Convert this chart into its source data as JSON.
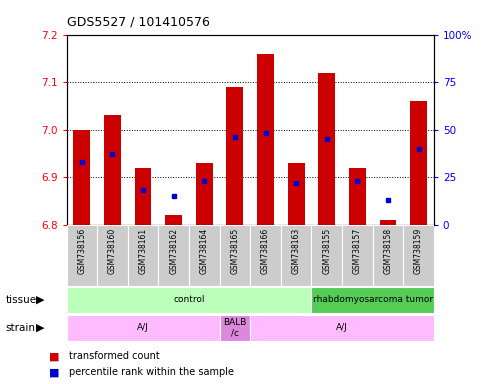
{
  "title": "GDS5527 / 101410576",
  "samples": [
    "GSM738156",
    "GSM738160",
    "GSM738161",
    "GSM738162",
    "GSM738164",
    "GSM738165",
    "GSM738166",
    "GSM738163",
    "GSM738155",
    "GSM738157",
    "GSM738158",
    "GSM738159"
  ],
  "red_values": [
    7.0,
    7.03,
    6.92,
    6.82,
    6.93,
    7.09,
    7.16,
    6.93,
    7.12,
    6.92,
    6.81,
    7.06
  ],
  "blue_values_pct": [
    33,
    37,
    18,
    15,
    23,
    46,
    48,
    22,
    45,
    23,
    13,
    40
  ],
  "ylim_left": [
    6.8,
    7.2
  ],
  "ylim_right": [
    0,
    100
  ],
  "yticks_left": [
    6.8,
    6.9,
    7.0,
    7.1,
    7.2
  ],
  "yticks_right": [
    0,
    25,
    50,
    75,
    100
  ],
  "ytick_labels_right": [
    "0",
    "25",
    "50",
    "75",
    "100%"
  ],
  "bar_bottom": 6.8,
  "bar_color": "#cc0000",
  "blue_color": "#0000cc",
  "tissue_groups": [
    {
      "label": "control",
      "start": 0,
      "end": 8,
      "color": "#bbffbb"
    },
    {
      "label": "rhabdomyosarcoma tumor",
      "start": 8,
      "end": 12,
      "color": "#55cc55"
    }
  ],
  "strain_groups": [
    {
      "label": "A/J",
      "start": 0,
      "end": 5,
      "color": "#ffbbff"
    },
    {
      "label": "BALB\n/c",
      "start": 5,
      "end": 6,
      "color": "#dd88dd"
    },
    {
      "label": "A/J",
      "start": 6,
      "end": 12,
      "color": "#ffbbff"
    }
  ],
  "legend_red": "transformed count",
  "legend_blue": "percentile rank within the sample",
  "bar_width": 0.55
}
